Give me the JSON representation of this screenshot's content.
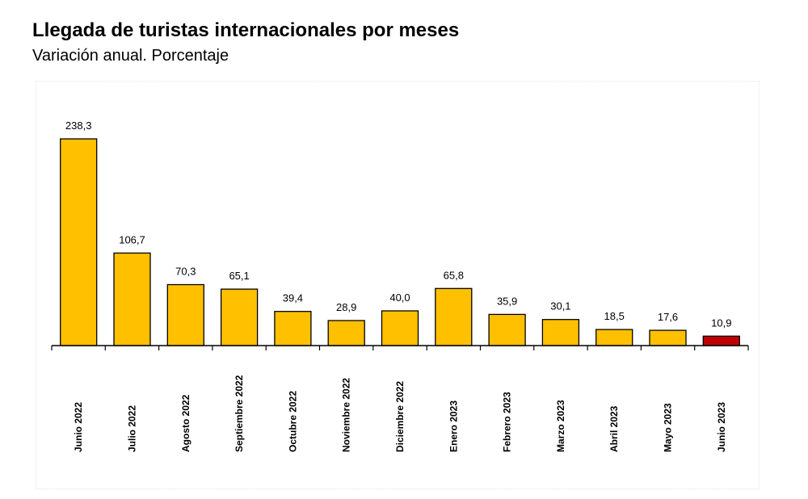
{
  "chart_data": {
    "type": "bar",
    "title": "Llegada de turistas internacionales por meses",
    "subtitle": "Variación anual. Porcentaje",
    "categories": [
      "Junio 2022",
      "Julio 2022",
      "Agosto 2022",
      "Septiembre 2022",
      "Octubre 2022",
      "Noviembre 2022",
      "Diciembre 2022",
      "Enero 2023",
      "Febrero 2023",
      "Marzo 2023",
      "Abril 2023",
      "Mayo 2023",
      "Junio 2023"
    ],
    "values": [
      238.3,
      106.7,
      70.3,
      65.1,
      39.4,
      28.9,
      40.0,
      65.8,
      35.9,
      30.1,
      18.5,
      17.6,
      10.9
    ],
    "value_labels": [
      "238,3",
      "106,7",
      "70,3",
      "65,1",
      "39,4",
      "28,9",
      "40,0",
      "65,8",
      "35,9",
      "30,1",
      "18,5",
      "17,6",
      "10,9"
    ],
    "ylim": [
      0,
      240
    ],
    "grid": false,
    "legend": "none",
    "colors": {
      "default_bar": "#ffc000",
      "highlight_bar": "#c00000",
      "bar_outline": "#000000",
      "axis": "#000000"
    },
    "highlight_index": 12
  }
}
